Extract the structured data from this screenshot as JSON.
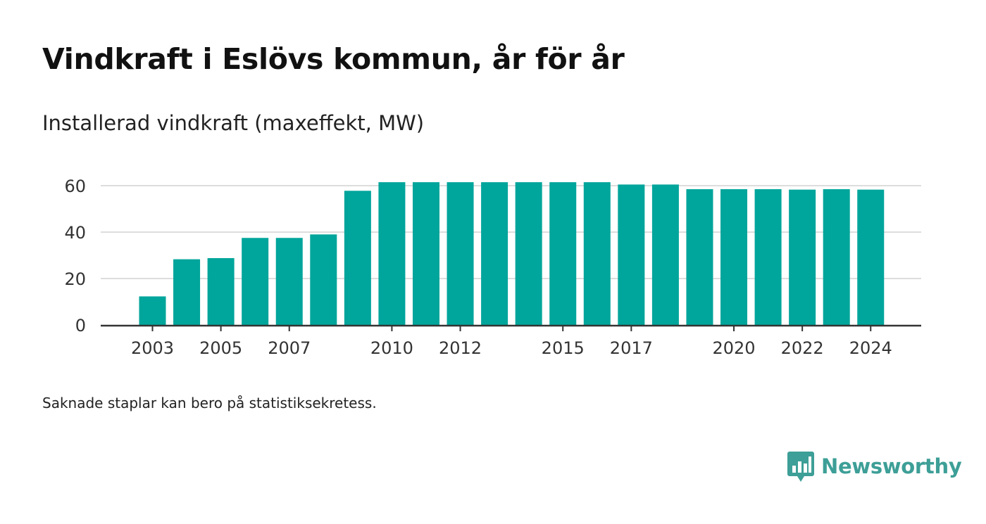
{
  "header": {
    "title": "Vindkraft i Eslövs kommun, år för år",
    "subtitle": "Installerad vindkraft (maxeffekt, MW)"
  },
  "footer": {
    "note": "Saknade staplar kan bero på statistiksekretess.",
    "brand": "Newsworthy",
    "brand_icon": "bar-chart-logo-icon"
  },
  "colors": {
    "bar": "#00a59b",
    "grid": "#dddddd",
    "axis": "#333333",
    "brand": "#3d9f97"
  },
  "chart_data": {
    "type": "bar",
    "title": "Vindkraft i Eslövs kommun, år för år",
    "subtitle": "Installerad vindkraft (maxeffekt, MW)",
    "xlabel": "",
    "ylabel": "",
    "categories": [
      "2003",
      "2004",
      "2005",
      "2006",
      "2007",
      "2008",
      "2009",
      "2010",
      "2011",
      "2012",
      "2013",
      "2014",
      "2015",
      "2016",
      "2017",
      "2018",
      "2019",
      "2020",
      "2021",
      "2022",
      "2023",
      "2024"
    ],
    "values": [
      12.3,
      28.3,
      28.8,
      37.5,
      37.5,
      39,
      57.8,
      61.5,
      61.5,
      61.5,
      61.5,
      61.5,
      61.5,
      61.5,
      60.5,
      60.5,
      58.5,
      58.5,
      58.5,
      58.3,
      58.5,
      58.3
    ],
    "x_tick_labels": [
      "2003",
      "2005",
      "2007",
      "2010",
      "2012",
      "2015",
      "2017",
      "2020",
      "2022",
      "2024"
    ],
    "y_ticks": [
      0,
      20,
      40,
      60
    ],
    "ylim": [
      0,
      65
    ],
    "grid": true,
    "legend": "none"
  }
}
